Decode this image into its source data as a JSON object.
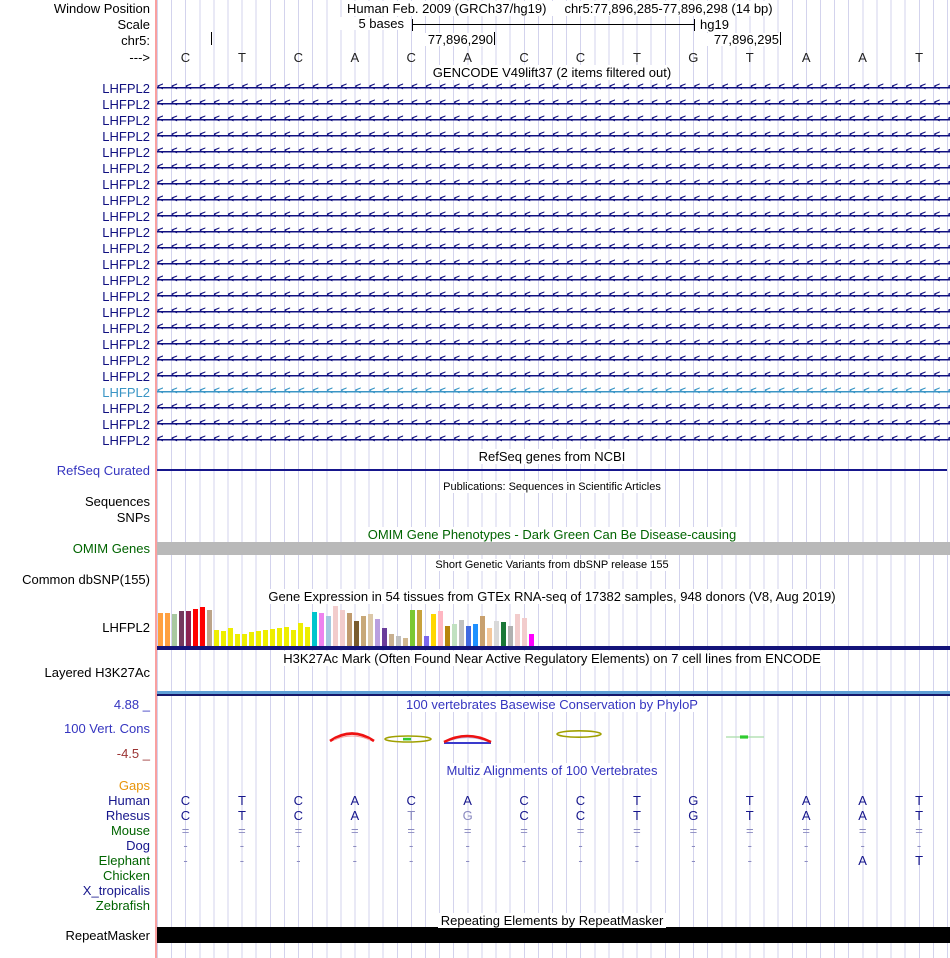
{
  "header": {
    "window_position_label": "Window Position",
    "assembly_position": "Human Feb. 2009 (GRCh37/hg19)",
    "range": "chr5:77,896,285-77,896,298 (14 bp)",
    "scale_label": "Scale",
    "scale_bases": "5 bases",
    "scale_assembly": "hg19",
    "chrom_label": "chr5:",
    "coord_left": "77,896,290",
    "coord_right": "77,896,295",
    "strand_label": "--->",
    "sequence": [
      "C",
      "T",
      "C",
      "A",
      "C",
      "A",
      "C",
      "C",
      "T",
      "G",
      "T",
      "A",
      "A",
      "T"
    ]
  },
  "gencode": {
    "title": "GENCODE V49lift37 (2 items filtered out)",
    "gene_label": "LHFPL2",
    "row_count": 23,
    "highlight_row_index": 19
  },
  "refseq": {
    "title": "RefSeq genes from NCBI",
    "label": "RefSeq Curated"
  },
  "publications": {
    "title": "Publications: Sequences in Scientific Articles",
    "labels": [
      "Sequences",
      "SNPs"
    ]
  },
  "omim": {
    "title": "OMIM Gene Phenotypes - Dark Green Can Be Disease-causing",
    "label": "OMIM Genes"
  },
  "dbsnp": {
    "title": "Short Genetic Variants from dbSNP release 155",
    "label": "Common dbSNP(155)"
  },
  "gtex": {
    "label": "LHFPL2"
  },
  "chart_data": {
    "type": "bar",
    "title": "Gene Expression in 54 tissues from GTEx RNA-seq of 17382 samples, 948 donors (V8, Aug 2019)",
    "ylim": [
      0,
      40
    ],
    "bars": [
      {
        "color": "#FFA040",
        "value": 33
      },
      {
        "color": "#FFA040",
        "value": 33
      },
      {
        "color": "#A8C8A0",
        "value": 32
      },
      {
        "color": "#74395E",
        "value": 35
      },
      {
        "color": "#8B2252",
        "value": 35
      },
      {
        "color": "#FF0000",
        "value": 37
      },
      {
        "color": "#FF0000",
        "value": 39
      },
      {
        "color": "#BCA489",
        "value": 36
      },
      {
        "color": "#EEEE00",
        "value": 16
      },
      {
        "color": "#EEEE00",
        "value": 15
      },
      {
        "color": "#EEEE00",
        "value": 18
      },
      {
        "color": "#EEEE00",
        "value": 12
      },
      {
        "color": "#EEEE00",
        "value": 12
      },
      {
        "color": "#EEEE00",
        "value": 14
      },
      {
        "color": "#EEEE00",
        "value": 15
      },
      {
        "color": "#EEEE00",
        "value": 16
      },
      {
        "color": "#EEEE00",
        "value": 17
      },
      {
        "color": "#EEEE00",
        "value": 18
      },
      {
        "color": "#EEEE00",
        "value": 19
      },
      {
        "color": "#EEEE00",
        "value": 16
      },
      {
        "color": "#EEEE00",
        "value": 23
      },
      {
        "color": "#EEEE00",
        "value": 19
      },
      {
        "color": "#00C5CD",
        "value": 34
      },
      {
        "color": "#EE82EE",
        "value": 33
      },
      {
        "color": "#A4C8E0",
        "value": 30
      },
      {
        "color": "#F2CCCC",
        "value": 40
      },
      {
        "color": "#F2CCCC",
        "value": 36
      },
      {
        "color": "#C09A6E",
        "value": 33
      },
      {
        "color": "#7A5C2E",
        "value": 25
      },
      {
        "color": "#C8A878",
        "value": 30
      },
      {
        "color": "#DCC8A8",
        "value": 32
      },
      {
        "color": "#B99FE0",
        "value": 27
      },
      {
        "color": "#6A3D9A",
        "value": 18
      },
      {
        "color": "#C8B090",
        "value": 12
      },
      {
        "color": "#C0C0C0",
        "value": 10
      },
      {
        "color": "#D0B890",
        "value": 8
      },
      {
        "color": "#7CC832",
        "value": 36
      },
      {
        "color": "#C8A13C",
        "value": 36
      },
      {
        "color": "#7B68EE",
        "value": 10
      },
      {
        "color": "#FFD700",
        "value": 32
      },
      {
        "color": "#FFB6C1",
        "value": 35
      },
      {
        "color": "#B8860B",
        "value": 20
      },
      {
        "color": "#C1E1C1",
        "value": 22
      },
      {
        "color": "#C0C0C0",
        "value": 26
      },
      {
        "color": "#4169E1",
        "value": 20
      },
      {
        "color": "#1E90FF",
        "value": 22
      },
      {
        "color": "#C8A06E",
        "value": 30
      },
      {
        "color": "#F5C89B",
        "value": 18
      },
      {
        "color": "#D9D9D9",
        "value": 25
      },
      {
        "color": "#1B7837",
        "value": 24
      },
      {
        "color": "#B0B0B0",
        "value": 20
      },
      {
        "color": "#F2CCCC",
        "value": 32
      },
      {
        "color": "#F2CCCC",
        "value": 28
      },
      {
        "color": "#FF00FF",
        "value": 12
      }
    ]
  },
  "h3k27ac": {
    "title": "H3K27Ac Mark (Often Found Near Active Regulatory Elements) on 7 cell lines from ENCODE",
    "label": "Layered H3K27Ac"
  },
  "conservation": {
    "title": "100 vertebrates Basewise Conservation by PhyloP",
    "label": "100 Vert. Cons",
    "max": "4.88 _",
    "min": "-4.5 _"
  },
  "multiz": {
    "title": "Multiz Alignments of 100 Vertebrates",
    "species": [
      {
        "name": "Gaps",
        "color": "orange",
        "cells": [],
        "light": []
      },
      {
        "name": "Human",
        "color": "navy",
        "cells": [
          "C",
          "T",
          "C",
          "A",
          "C",
          "A",
          "C",
          "C",
          "T",
          "G",
          "T",
          "A",
          "A",
          "T"
        ],
        "light": []
      },
      {
        "name": "Rhesus",
        "color": "navy",
        "cells": [
          "C",
          "T",
          "C",
          "A",
          "T",
          "G",
          "C",
          "C",
          "T",
          "G",
          "T",
          "A",
          "A",
          "T"
        ],
        "light": [
          4,
          5
        ]
      },
      {
        "name": "Mouse",
        "color": "green",
        "cells": [
          "=",
          "=",
          "=",
          "=",
          "=",
          "=",
          "=",
          "=",
          "=",
          "=",
          "=",
          "=",
          "=",
          "="
        ],
        "light": [
          0,
          1,
          2,
          3,
          4,
          5,
          6,
          7,
          8,
          9,
          10,
          11,
          12,
          13
        ]
      },
      {
        "name": "Dog",
        "color": "navy",
        "cells": [
          "-",
          "-",
          "-",
          "-",
          "-",
          "-",
          "-",
          "-",
          "-",
          "-",
          "-",
          "-",
          "-",
          "-"
        ],
        "light": [
          0,
          1,
          2,
          3,
          4,
          5,
          6,
          7,
          8,
          9,
          10,
          11,
          12,
          13
        ]
      },
      {
        "name": "Elephant",
        "color": "green",
        "cells": [
          "-",
          "-",
          "-",
          "-",
          "-",
          "-",
          "-",
          "-",
          "-",
          "-",
          "-",
          "-",
          "A",
          "T"
        ],
        "light": [
          0,
          1,
          2,
          3,
          4,
          5,
          6,
          7,
          8,
          9,
          10,
          11
        ]
      },
      {
        "name": "Chicken",
        "color": "green",
        "cells": [],
        "light": []
      },
      {
        "name": "X_tropicalis",
        "color": "navy",
        "cells": [],
        "light": []
      },
      {
        "name": "Zebrafish",
        "color": "green",
        "cells": [],
        "light": []
      }
    ]
  },
  "repeatmasker": {
    "title": "Repeating Elements by RepeatMasker",
    "label": "RepeatMasker"
  },
  "colors": {
    "gene_row": "#101080",
    "gene_row_highlight": "#3A95C5",
    "track_navy": "#16168C",
    "label_blue": "#3535C0",
    "dark_green": "#006400",
    "dark_red": "#9B3333",
    "gaps_orange": "#E8940A",
    "light_cell": "#8A8AC0",
    "sequence_letter": "#222222",
    "grid_line": "#D3D3ED",
    "edge_pink": "#F9A0A0",
    "omim_bar_gray": "#B9B9B9",
    "h3k27ac_light_blue": "#5F9FD6",
    "repeat_black": "#000000"
  }
}
